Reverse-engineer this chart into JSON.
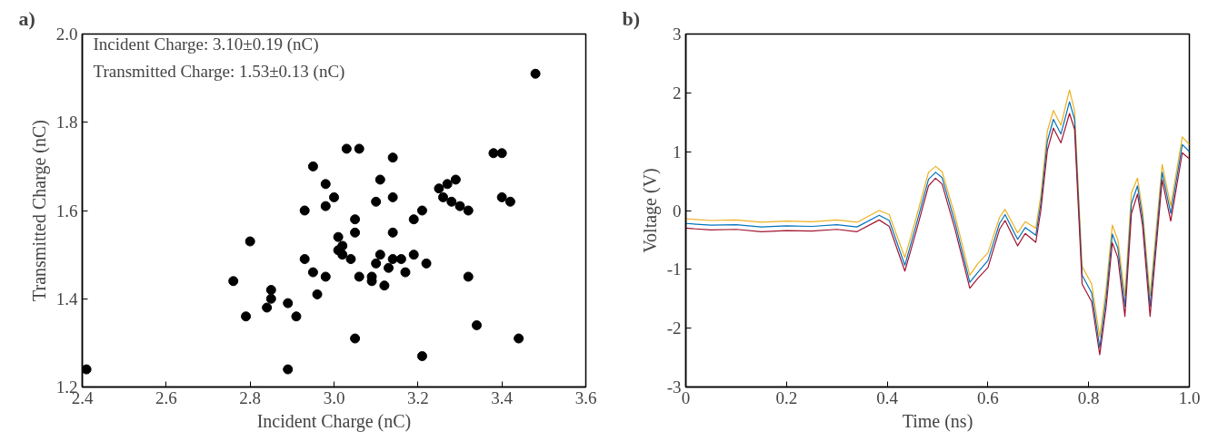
{
  "chart_data": [
    {
      "type": "scatter",
      "title": "a)",
      "xlabel": "Incident Charge (nC)",
      "ylabel": "Transmitted Charge (nC)",
      "annotations": [
        "Incident Charge: 3.10±0.19 (nC)",
        "Transmitted Charge: 1.53±0.13 (nC)"
      ],
      "xlim": [
        2.4,
        3.6
      ],
      "ylim": [
        1.2,
        2.0
      ],
      "xticks": [
        2.4,
        2.6,
        2.8,
        {
          "value": 3,
          "label": "3.0"
        },
        3.2,
        3.4,
        3.6
      ],
      "yticks": [
        1.2,
        1.4,
        1.6,
        1.8,
        {
          "value": 2,
          "label": "2.0"
        }
      ],
      "grid": false,
      "marker": "circle",
      "series": [
        {
          "color": "#000000",
          "x": [
            2.41,
            3.03,
            3.06,
            2.95,
            2.98,
            3.0,
            2.98,
            2.93,
            3.05,
            3.05,
            3.01,
            3.02,
            3.01,
            3.02,
            3.04,
            2.8,
            2.93,
            2.95,
            2.98,
            3.06,
            2.76,
            2.85,
            2.85,
            2.84,
            2.89,
            2.91,
            2.96,
            2.79,
            3.05,
            2.89,
            3.14,
            3.11,
            3.1,
            3.14,
            3.14,
            3.19,
            3.21,
            3.25,
            3.27,
            3.29,
            3.26,
            3.28,
            3.3,
            3.32,
            3.38,
            3.4,
            3.4,
            3.42,
            3.11,
            3.1,
            3.14,
            3.13,
            3.16,
            3.19,
            3.22,
            3.17,
            3.09,
            3.09,
            3.12,
            3.32,
            3.34,
            3.44,
            3.21,
            3.48
          ],
          "values": [
            1.24,
            1.74,
            1.74,
            1.7,
            1.66,
            1.63,
            1.61,
            1.6,
            1.58,
            1.55,
            1.54,
            1.52,
            1.51,
            1.5,
            1.49,
            1.53,
            1.49,
            1.46,
            1.45,
            1.45,
            1.44,
            1.42,
            1.4,
            1.38,
            1.39,
            1.36,
            1.41,
            1.36,
            1.31,
            1.24,
            1.72,
            1.67,
            1.62,
            1.63,
            1.55,
            1.58,
            1.6,
            1.65,
            1.66,
            1.67,
            1.63,
            1.62,
            1.61,
            1.6,
            1.73,
            1.73,
            1.63,
            1.62,
            1.5,
            1.48,
            1.49,
            1.47,
            1.49,
            1.5,
            1.48,
            1.46,
            1.45,
            1.44,
            1.43,
            1.45,
            1.34,
            1.31,
            1.27,
            1.91
          ]
        }
      ]
    },
    {
      "type": "line",
      "title": "b)",
      "xlabel": "Time (ns)",
      "ylabel": "Voltage (V)",
      "xlim": [
        0,
        1.0
      ],
      "ylim": [
        -3,
        3
      ],
      "xticks": [
        0,
        0.2,
        0.4,
        0.6,
        0.8,
        {
          "value": 1,
          "label": "1.0"
        }
      ],
      "yticks": [
        -3,
        -2,
        -1,
        0,
        1,
        2,
        3
      ],
      "grid": false,
      "marker": "none",
      "line_style": "solid",
      "x": [
        0,
        0.05,
        0.1,
        0.15,
        0.2,
        0.25,
        0.3,
        0.34,
        0.384,
        0.404,
        0.435,
        0.456,
        0.482,
        0.496,
        0.509,
        0.535,
        0.564,
        0.58,
        0.6,
        0.623,
        0.634,
        0.659,
        0.674,
        0.695,
        0.705,
        0.718,
        0.73,
        0.745,
        0.762,
        0.772,
        0.787,
        0.806,
        0.822,
        0.835,
        0.847,
        0.858,
        0.872,
        0.885,
        0.897,
        0.907,
        0.922,
        0.946,
        0.963,
        0.986,
        1.0
      ],
      "series": [
        {
          "color": "#edb120",
          "values": [
            -0.14,
            -0.17,
            -0.16,
            -0.2,
            -0.18,
            -0.19,
            -0.16,
            -0.2,
            0.0,
            -0.07,
            -0.8,
            -0.17,
            0.65,
            0.75,
            0.66,
            -0.1,
            -1.1,
            -0.9,
            -0.72,
            -0.12,
            0.02,
            -0.38,
            -0.19,
            -0.3,
            0.25,
            1.35,
            1.7,
            1.45,
            2.05,
            1.7,
            -0.95,
            -1.25,
            -2.15,
            -1.3,
            -0.25,
            -0.5,
            -1.45,
            0.3,
            0.55,
            0.0,
            -1.45,
            0.78,
            0.08,
            1.25,
            1.12
          ]
        },
        {
          "color": "#0072bd",
          "values": [
            -0.22,
            -0.25,
            -0.24,
            -0.28,
            -0.26,
            -0.27,
            -0.24,
            -0.28,
            -0.08,
            -0.17,
            -0.93,
            -0.29,
            0.53,
            0.65,
            0.56,
            -0.22,
            -1.22,
            -1.05,
            -0.85,
            -0.22,
            -0.07,
            -0.49,
            -0.29,
            -0.42,
            0.12,
            1.18,
            1.55,
            1.3,
            1.85,
            1.55,
            -1.1,
            -1.4,
            -2.33,
            -1.46,
            -0.4,
            -0.64,
            -1.63,
            0.12,
            0.42,
            -0.12,
            -1.63,
            0.65,
            -0.05,
            1.12,
            1.0
          ]
        },
        {
          "color": "#a2142f",
          "values": [
            -0.3,
            -0.33,
            -0.32,
            -0.36,
            -0.34,
            -0.35,
            -0.32,
            -0.36,
            -0.16,
            -0.27,
            -1.03,
            -0.4,
            0.42,
            0.55,
            0.45,
            -0.33,
            -1.32,
            -1.15,
            -0.97,
            -0.32,
            -0.17,
            -0.6,
            -0.39,
            -0.54,
            0.0,
            1.02,
            1.4,
            1.15,
            1.65,
            1.38,
            -1.25,
            -1.55,
            -2.45,
            -1.62,
            -0.55,
            -0.8,
            -1.8,
            -0.05,
            0.28,
            -0.25,
            -1.8,
            0.52,
            -0.18,
            0.98,
            0.88
          ]
        }
      ]
    }
  ]
}
